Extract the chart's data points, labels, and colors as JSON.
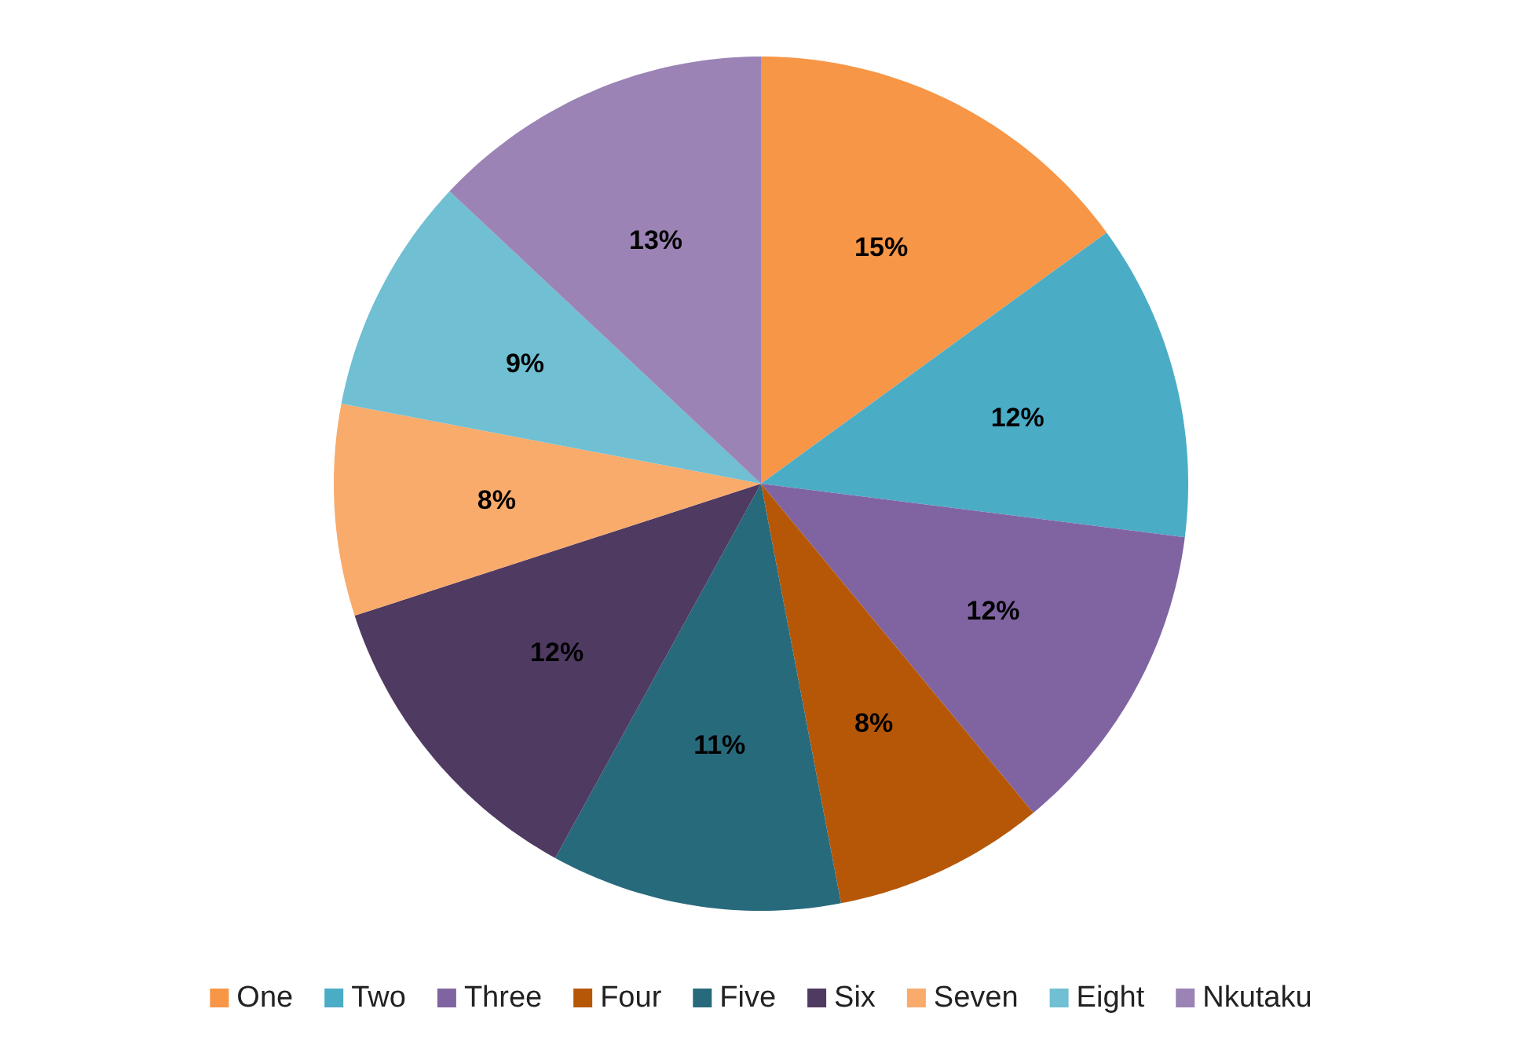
{
  "chart_data": {
    "type": "pie",
    "categories": [
      "One",
      "Two",
      "Three",
      "Four",
      "Five",
      "Six",
      "Seven",
      "Eight",
      "Nkutaku"
    ],
    "values": [
      15,
      12,
      12,
      8,
      11,
      12,
      8,
      9,
      13
    ],
    "colors": [
      "#f79646",
      "#4bacc6",
      "#8064a2",
      "#b65708",
      "#276a7c",
      "#4f3a62",
      "#f9ab6b",
      "#70bfd2",
      "#9b83b5"
    ],
    "value_labels": [
      "15%",
      "12%",
      "12%",
      "8%",
      "11%",
      "12%",
      "8%",
      "9%",
      "13%"
    ],
    "legend": "bottom"
  }
}
